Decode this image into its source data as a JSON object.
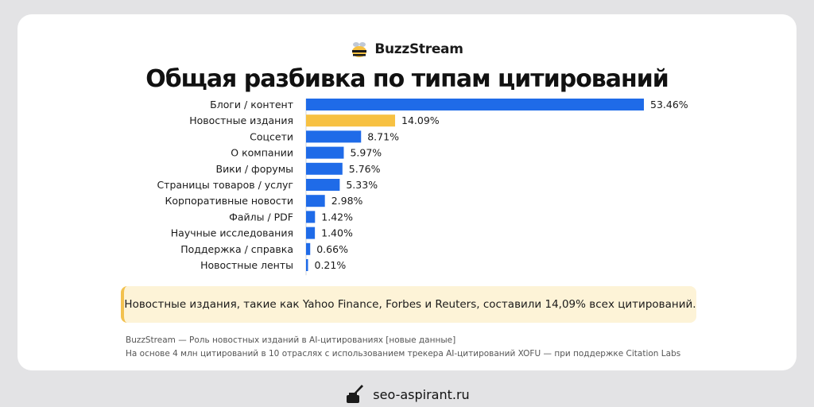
{
  "brand": {
    "name": "BuzzStream",
    "icon": "bee-icon"
  },
  "chart_data": {
    "type": "bar",
    "orientation": "horizontal",
    "title": "Общая разбивка по типам цитирований",
    "categories": [
      "Блоги / контент",
      "Новостные издания",
      "Соцсети",
      "О компании",
      "Вики / форумы",
      "Страницы товаров / услуг",
      "Корпоративные новости",
      "Файлы / PDF",
      "Научные исследования",
      "Поддержка / справка",
      "Новостные ленты"
    ],
    "values": [
      53.46,
      14.09,
      8.71,
      5.97,
      5.76,
      5.33,
      2.98,
      1.42,
      1.4,
      0.66,
      0.21
    ],
    "value_labels": [
      "53.46%",
      "14.09%",
      "8.71%",
      "5.97%",
      "5.76%",
      "5.33%",
      "2.98%",
      "1.42%",
      "1.40%",
      "0.66%",
      "0.21%"
    ],
    "highlight_index": 1,
    "colors": {
      "default": "#1f6be8",
      "highlight": "#f7c142"
    },
    "grid": false,
    "legend": "none"
  },
  "callout": {
    "text": "Новостные издания, такие как Yahoo Finance, Forbes и Reuters, составили 14,09% всех цитирований.",
    "colors": {
      "background": "#fdf3d7",
      "border": "#f2c14e"
    }
  },
  "source": {
    "line1": "BuzzStream — Роль новостных изданий в AI-цитированиях [новые данные]",
    "line2": "На основе 4 млн цитирований в 10 отраслях с использованием трекера AI-цитирований XOFU — при поддержке Citation Labs"
  },
  "footer": {
    "site": "seo-aspirant.ru",
    "icon": "inkwell-quill-icon"
  }
}
